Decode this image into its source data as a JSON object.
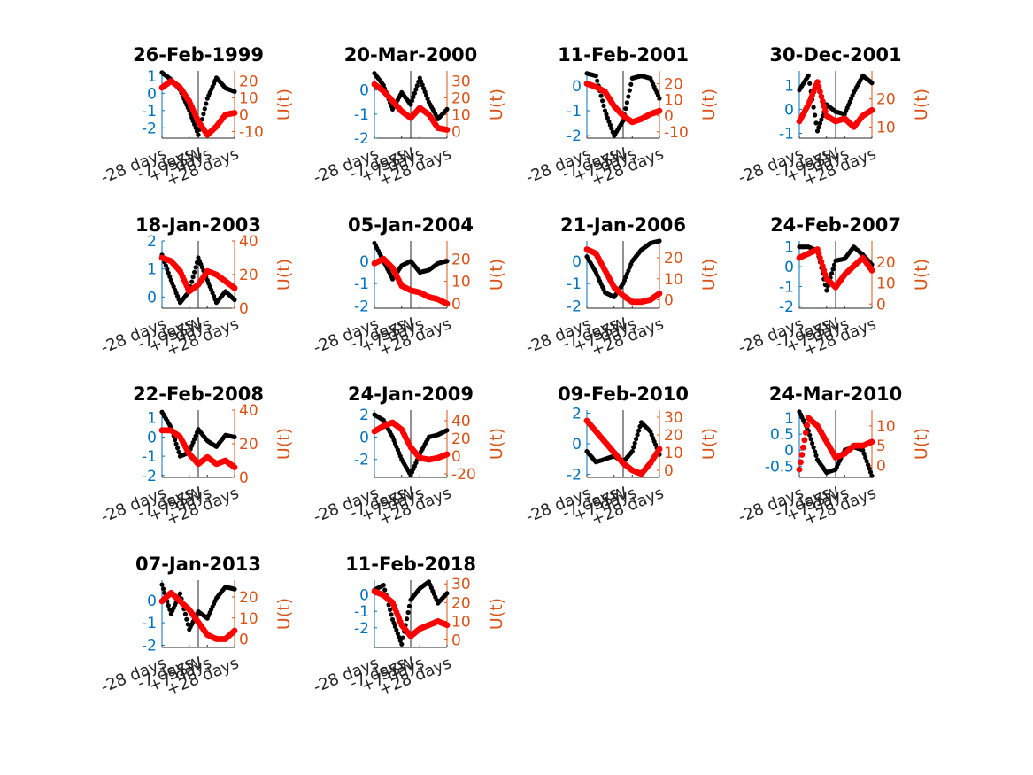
{
  "figure": {
    "colors": {
      "left_axis": "#0072BD",
      "right_axis": "#D95319",
      "series_black": "#000000",
      "series_red": "#FF0000",
      "axes": "#262626"
    }
  },
  "chart_data": [
    {
      "type": "scatter",
      "title": "26-Feb-1999",
      "ylabel_right": "U(t)",
      "xticklabels": [
        "-28 days",
        "-7 days",
        "SSW",
        "+7 days",
        "+28 days"
      ],
      "left_yticks": [
        1,
        0,
        -1,
        -2
      ],
      "right_yticks": [
        20,
        10,
        0,
        -10
      ],
      "left_ylim": [
        -2.6,
        1.3
      ],
      "right_ylim": [
        -14,
        26
      ],
      "x": [
        -28,
        -21,
        -14,
        -7,
        0,
        7,
        14,
        21,
        28
      ],
      "series": [
        {
          "values_axis": "left",
          "color": "black",
          "values": [
            1.2,
            0.8,
            0.2,
            -1.0,
            -2.4,
            -0.3,
            0.9,
            0.3,
            0.1
          ]
        },
        {
          "values_axis": "right",
          "color": "red",
          "values": [
            16,
            20,
            16,
            8,
            -4,
            -12,
            -7,
            0,
            1
          ]
        }
      ]
    },
    {
      "type": "scatter",
      "title": "20-Mar-2000",
      "ylabel_right": "U(t)",
      "xticklabels": [
        "-28 days",
        "-7 days",
        "SSW",
        "+7 days",
        "+28 days"
      ],
      "left_yticks": [
        0,
        -1,
        -2
      ],
      "right_yticks": [
        30,
        20,
        10,
        0
      ],
      "left_ylim": [
        -2.0,
        0.8
      ],
      "right_ylim": [
        -4,
        36
      ],
      "x": [
        -28,
        -21,
        -14,
        -7,
        0,
        7,
        14,
        21,
        28
      ],
      "series": [
        {
          "values_axis": "left",
          "color": "black",
          "values": [
            0.7,
            0.2,
            -0.8,
            -0.1,
            -0.6,
            0.5,
            -0.5,
            -1.2,
            -0.8
          ]
        },
        {
          "values_axis": "right",
          "color": "red",
          "values": [
            28,
            24,
            18,
            12,
            8,
            14,
            10,
            2,
            1
          ]
        }
      ]
    },
    {
      "type": "scatter",
      "title": "11-Feb-2001",
      "ylabel_right": "U(t)",
      "xticklabels": [
        "-28 days",
        "-7 days",
        "SSW",
        "+7 days",
        "+28 days"
      ],
      "left_yticks": [
        0,
        -1,
        -2
      ],
      "right_yticks": [
        20,
        10,
        0,
        -10
      ],
      "left_ylim": [
        -2.1,
        0.6
      ],
      "right_ylim": [
        -14,
        28
      ],
      "x": [
        -28,
        -21,
        -14,
        -7,
        0,
        7,
        14,
        21,
        28
      ],
      "series": [
        {
          "values_axis": "left",
          "color": "black",
          "values": [
            0.5,
            0.4,
            -1.0,
            -2.0,
            -1.4,
            0.3,
            0.4,
            0.3,
            -0.5
          ]
        },
        {
          "values_axis": "right",
          "color": "red",
          "values": [
            20,
            18,
            15,
            6,
            0,
            -4,
            -2,
            1,
            3
          ]
        }
      ]
    },
    {
      "type": "scatter",
      "title": "30-Dec-2001",
      "ylabel_right": "U(t)",
      "xticklabels": [
        "-28 days",
        "-7 days",
        "SSW",
        "+7 days",
        "+28 days"
      ],
      "left_yticks": [
        1,
        0,
        -1
      ],
      "right_yticks": [
        20,
        10
      ],
      "left_ylim": [
        -1.2,
        1.6
      ],
      "right_ylim": [
        6,
        30
      ],
      "x": [
        -28,
        -21,
        -14,
        -7,
        0,
        7,
        14,
        21,
        28
      ],
      "series": [
        {
          "values_axis": "left",
          "color": "black",
          "values": [
            0.8,
            1.4,
            -0.9,
            0.2,
            -0.1,
            -0.2,
            0.7,
            1.4,
            1.1
          ]
        },
        {
          "values_axis": "right",
          "color": "red",
          "values": [
            12,
            18,
            26,
            14,
            12,
            13,
            10,
            14,
            16
          ]
        }
      ]
    },
    {
      "type": "scatter",
      "title": "18-Jan-2003",
      "ylabel_right": "U(t)",
      "xticklabels": [
        "-28 days",
        "-7 days",
        "SSW",
        "+7 days",
        "+28 days"
      ],
      "left_yticks": [
        2,
        1,
        0
      ],
      "right_yticks": [
        40,
        20,
        0
      ],
      "left_ylim": [
        -0.4,
        2.0
      ],
      "right_ylim": [
        0,
        40
      ],
      "x": [
        -28,
        -21,
        -14,
        -7,
        0,
        7,
        14,
        21,
        28
      ],
      "series": [
        {
          "values_axis": "left",
          "color": "black",
          "values": [
            1.5,
            0.6,
            -0.2,
            0.2,
            1.4,
            0.6,
            -0.2,
            0.2,
            -0.1
          ]
        },
        {
          "values_axis": "right",
          "color": "red",
          "values": [
            30,
            28,
            22,
            10,
            14,
            22,
            20,
            16,
            12
          ]
        }
      ]
    },
    {
      "type": "scatter",
      "title": "05-Jan-2004",
      "ylabel_right": "U(t)",
      "xticklabels": [
        "-28 days",
        "-7 days",
        "SSW",
        "+7 days",
        "+28 days"
      ],
      "left_yticks": [
        0,
        -1,
        -2
      ],
      "right_yticks": [
        20,
        10,
        0
      ],
      "left_ylim": [
        -2.1,
        0.9
      ],
      "right_ylim": [
        -2,
        28
      ],
      "x": [
        -28,
        -21,
        -14,
        -7,
        0,
        7,
        14,
        21,
        28
      ],
      "series": [
        {
          "values_axis": "left",
          "color": "black",
          "values": [
            0.8,
            0.0,
            -0.8,
            -0.2,
            0.0,
            -0.5,
            -0.4,
            -0.1,
            0.0
          ]
        },
        {
          "values_axis": "right",
          "color": "red",
          "values": [
            18,
            20,
            16,
            8,
            6,
            5,
            3,
            2,
            0
          ]
        }
      ]
    },
    {
      "type": "scatter",
      "title": "21-Jan-2006",
      "ylabel_right": "U(t)",
      "xticklabels": [
        "-28 days",
        "-7 days",
        "SSW",
        "+7 days",
        "+28 days"
      ],
      "left_yticks": [
        0,
        -1,
        -2
      ],
      "right_yticks": [
        20,
        10,
        0
      ],
      "left_ylim": [
        -2.1,
        0.9
      ],
      "right_ylim": [
        -4,
        28
      ],
      "x": [
        -28,
        -21,
        -14,
        -7,
        0,
        7,
        14,
        21,
        28
      ],
      "series": [
        {
          "values_axis": "left",
          "color": "black",
          "values": [
            0.2,
            -0.5,
            -1.4,
            -1.6,
            -1.0,
            0.0,
            0.5,
            0.8,
            0.9
          ]
        },
        {
          "values_axis": "right",
          "color": "red",
          "values": [
            24,
            22,
            14,
            6,
            2,
            -1,
            -1,
            0,
            3
          ]
        }
      ]
    },
    {
      "type": "scatter",
      "title": "24-Feb-2007",
      "ylabel_right": "U(t)",
      "xticklabels": [
        "-28 days",
        "-7 days",
        "SSW",
        "+7 days",
        "+28 days"
      ],
      "left_yticks": [
        1,
        0,
        -1,
        -2
      ],
      "right_yticks": [
        20,
        10,
        0
      ],
      "left_ylim": [
        -2.1,
        1.3
      ],
      "right_ylim": [
        -2,
        30
      ],
      "x": [
        -28,
        -21,
        -14,
        -7,
        0,
        7,
        14,
        21,
        28
      ],
      "series": [
        {
          "values_axis": "left",
          "color": "black",
          "values": [
            1.0,
            1.0,
            0.8,
            -1.2,
            0.3,
            0.4,
            1.0,
            0.6,
            0.1
          ]
        },
        {
          "values_axis": "right",
          "color": "red",
          "values": [
            22,
            24,
            26,
            12,
            8,
            14,
            18,
            22,
            16
          ]
        }
      ]
    },
    {
      "type": "scatter",
      "title": "22-Feb-2008",
      "ylabel_right": "U(t)",
      "xticklabels": [
        "-28 days",
        "-7 days",
        "SSW",
        "+7 days",
        "+28 days"
      ],
      "left_yticks": [
        1,
        0,
        -1,
        -2
      ],
      "right_yticks": [
        40,
        20,
        0
      ],
      "left_ylim": [
        -2.1,
        1.4
      ],
      "right_ylim": [
        0,
        40
      ],
      "x": [
        -28,
        -21,
        -14,
        -7,
        0,
        7,
        14,
        21,
        28
      ],
      "series": [
        {
          "values_axis": "left",
          "color": "black",
          "values": [
            1.3,
            0.5,
            -1.0,
            -0.8,
            0.4,
            -0.2,
            -0.5,
            0.1,
            0.0
          ]
        },
        {
          "values_axis": "right",
          "color": "red",
          "values": [
            28,
            28,
            24,
            14,
            8,
            12,
            8,
            10,
            6
          ]
        }
      ]
    },
    {
      "type": "scatter",
      "title": "24-Jan-2009",
      "ylabel_right": "U(t)",
      "xticklabels": [
        "-28 days",
        "-7 days",
        "SSW",
        "+7 days",
        "+28 days"
      ],
      "left_yticks": [
        2,
        0,
        -2
      ],
      "right_yticks": [
        40,
        20,
        0,
        -20
      ],
      "left_ylim": [
        -3.6,
        2.4
      ],
      "right_ylim": [
        -24,
        52
      ],
      "x": [
        -28,
        -21,
        -14,
        -7,
        0,
        7,
        14,
        21,
        28
      ],
      "series": [
        {
          "values_axis": "left",
          "color": "black",
          "values": [
            2.0,
            1.5,
            0.0,
            -2.0,
            -3.4,
            -1.5,
            0.0,
            0.2,
            0.6
          ]
        },
        {
          "values_axis": "right",
          "color": "red",
          "values": [
            28,
            34,
            38,
            30,
            10,
            -2,
            -4,
            -2,
            2
          ]
        }
      ]
    },
    {
      "type": "scatter",
      "title": "09-Feb-2010",
      "ylabel_right": "U(t)",
      "xticklabels": [
        "-28 days",
        "-7 days",
        "SSW",
        "+7 days",
        "+28 days"
      ],
      "left_yticks": [
        2,
        0,
        -2
      ],
      "right_yticks": [
        30,
        20,
        10,
        0
      ],
      "left_ylim": [
        -2.2,
        2.2
      ],
      "right_ylim": [
        -4,
        34
      ],
      "x": [
        -28,
        -21,
        -14,
        -7,
        0,
        7,
        14,
        21,
        28
      ],
      "series": [
        {
          "values_axis": "left",
          "color": "black",
          "values": [
            -0.5,
            -1.2,
            -1.0,
            -0.8,
            -1.2,
            -0.5,
            1.4,
            0.8,
            -0.7
          ]
        },
        {
          "values_axis": "right",
          "color": "red",
          "values": [
            28,
            22,
            16,
            10,
            4,
            0,
            -2,
            4,
            12
          ]
        }
      ]
    },
    {
      "type": "scatter",
      "title": "24-Mar-2010",
      "ylabel_right": "U(t)",
      "xticklabels": [
        "-28 days",
        "-7 days",
        "SSW",
        "+7 days",
        "+28 days"
      ],
      "left_yticks": [
        1,
        0.5,
        0,
        -0.5
      ],
      "right_yticks": [
        10,
        5,
        0
      ],
      "left_ylim": [
        -0.85,
        1.25
      ],
      "right_ylim": [
        -3,
        14
      ],
      "x": [
        -28,
        -21,
        -14,
        -7,
        0,
        7,
        14,
        21,
        28
      ],
      "series": [
        {
          "values_axis": "left",
          "color": "black",
          "values": [
            1.2,
            0.6,
            -0.3,
            -0.7,
            -0.6,
            0.0,
            0.1,
            0.0,
            -0.8
          ]
        },
        {
          "values_axis": "right",
          "color": "red",
          "values": [
            -1,
            12,
            10,
            6,
            2,
            3,
            5,
            5,
            6
          ]
        }
      ]
    },
    {
      "type": "scatter",
      "title": "07-Jan-2013",
      "ylabel_right": "U(t)",
      "xticklabels": [
        "-28 days",
        "-7 days",
        "SSW",
        "+7 days",
        "+28 days"
      ],
      "left_yticks": [
        0,
        -1,
        -2
      ],
      "right_yticks": [
        20,
        10,
        0
      ],
      "left_ylim": [
        -2.1,
        0.9
      ],
      "right_ylim": [
        -4,
        28
      ],
      "x": [
        -28,
        -21,
        -14,
        -7,
        0,
        7,
        14,
        21,
        28
      ],
      "series": [
        {
          "values_axis": "left",
          "color": "black",
          "values": [
            0.7,
            -0.6,
            0.3,
            -1.3,
            -0.5,
            -0.8,
            0.1,
            0.6,
            0.5
          ]
        },
        {
          "values_axis": "right",
          "color": "red",
          "values": [
            18,
            22,
            18,
            14,
            8,
            2,
            0,
            0,
            4
          ]
        }
      ]
    },
    {
      "type": "scatter",
      "title": "11-Feb-2018",
      "ylabel_right": "U(t)",
      "xticklabels": [
        "-28 days",
        "-7 days",
        "SSW",
        "+7 days",
        "+28 days"
      ],
      "left_yticks": [
        0,
        -1,
        -2
      ],
      "right_yticks": [
        30,
        20,
        10,
        0
      ],
      "left_ylim": [
        -3.2,
        0.9
      ],
      "right_ylim": [
        -4,
        32
      ],
      "x": [
        -28,
        -21,
        -14,
        -7,
        0,
        7,
        14,
        21,
        28
      ],
      "series": [
        {
          "values_axis": "left",
          "color": "black",
          "values": [
            0.3,
            0.6,
            -1.5,
            -3.0,
            -0.3,
            0.4,
            0.8,
            -0.5,
            0.1
          ]
        },
        {
          "values_axis": "right",
          "color": "red",
          "values": [
            26,
            24,
            20,
            8,
            2,
            6,
            8,
            10,
            8
          ]
        }
      ]
    }
  ]
}
